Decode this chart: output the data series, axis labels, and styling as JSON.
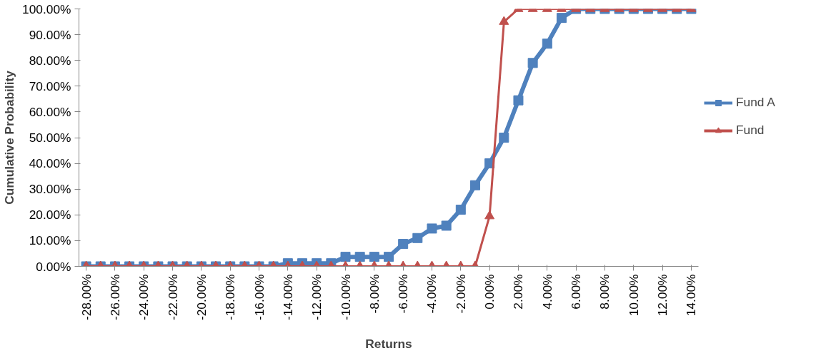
{
  "chart_data": {
    "type": "line",
    "xlabel": "Returns",
    "ylabel": "Cumulative Probability",
    "x": [
      -28,
      -27,
      -26,
      -25,
      -24,
      -23,
      -22,
      -21,
      -20,
      -19,
      -18,
      -17,
      -16,
      -15,
      -14,
      -13,
      -12,
      -11,
      -10,
      -9,
      -8,
      -7,
      -6,
      -5,
      -4,
      -3,
      -2,
      -1,
      0,
      1,
      2,
      3,
      4,
      5,
      6,
      7,
      8,
      9,
      10,
      11,
      12,
      13,
      14
    ],
    "series": [
      {
        "name": "Fund A",
        "color": "#4f81bd",
        "marker": "square",
        "values": [
          0,
          0,
          0,
          0,
          0,
          0,
          0,
          0,
          0,
          0,
          0,
          0,
          0,
          0,
          1.2,
          1.2,
          1.2,
          1.2,
          3.7,
          3.7,
          3.7,
          3.7,
          8.7,
          11,
          14.7,
          15.8,
          22,
          31.5,
          40,
          50,
          64.5,
          79,
          86.5,
          96.5,
          100,
          100,
          100,
          100,
          100,
          100,
          100,
          100,
          100
        ]
      },
      {
        "name": "Fund",
        "color": "#c0504d",
        "marker": "triangle",
        "values": [
          0,
          0,
          0,
          0,
          0,
          0,
          0,
          0,
          0,
          0,
          0,
          0,
          0,
          0,
          0,
          0,
          0,
          0,
          0,
          0,
          0,
          0,
          0,
          0,
          0,
          0,
          0,
          0,
          19.5,
          95,
          100,
          100,
          100,
          100,
          100,
          100,
          100,
          100,
          100,
          100,
          100,
          100,
          100
        ]
      }
    ],
    "xlim": [
      -28.5,
      14.5
    ],
    "xticks": [
      {
        "value": -28,
        "label": "-28.00%"
      },
      {
        "value": -26,
        "label": "-26.00%"
      },
      {
        "value": -24,
        "label": "-24.00%"
      },
      {
        "value": -22,
        "label": "-22.00%"
      },
      {
        "value": -20,
        "label": "-20.00%"
      },
      {
        "value": -18,
        "label": "-18.00%"
      },
      {
        "value": -16,
        "label": "-16.00%"
      },
      {
        "value": -14,
        "label": "-14.00%"
      },
      {
        "value": -12,
        "label": "-12.00%"
      },
      {
        "value": -10,
        "label": "-10.00%"
      },
      {
        "value": -8,
        "label": "-8.00%"
      },
      {
        "value": -6,
        "label": "-6.00%"
      },
      {
        "value": -4,
        "label": "-4.00%"
      },
      {
        "value": -2,
        "label": "-2.00%"
      },
      {
        "value": 0,
        "label": "0.00%"
      },
      {
        "value": 2,
        "label": "2.00%"
      },
      {
        "value": 4,
        "label": "4.00%"
      },
      {
        "value": 6,
        "label": "6.00%"
      },
      {
        "value": 8,
        "label": "8.00%"
      },
      {
        "value": 10,
        "label": "10.00%"
      },
      {
        "value": 12,
        "label": "12.00%"
      },
      {
        "value": 14,
        "label": "14.00%"
      }
    ],
    "ylim": [
      0,
      100
    ],
    "yticks": [
      {
        "value": 0,
        "label": "0.00%"
      },
      {
        "value": 10,
        "label": "10.00%"
      },
      {
        "value": 20,
        "label": "20.00%"
      },
      {
        "value": 30,
        "label": "30.00%"
      },
      {
        "value": 40,
        "label": "40.00%"
      },
      {
        "value": 50,
        "label": "50.00%"
      },
      {
        "value": 60,
        "label": "60.00%"
      },
      {
        "value": 70,
        "label": "70.00%"
      },
      {
        "value": 80,
        "label": "80.00%"
      },
      {
        "value": 90,
        "label": "90.00%"
      },
      {
        "value": 100,
        "label": "100.00%"
      }
    ],
    "grid": false,
    "legend": "right",
    "line_style": "solid"
  }
}
